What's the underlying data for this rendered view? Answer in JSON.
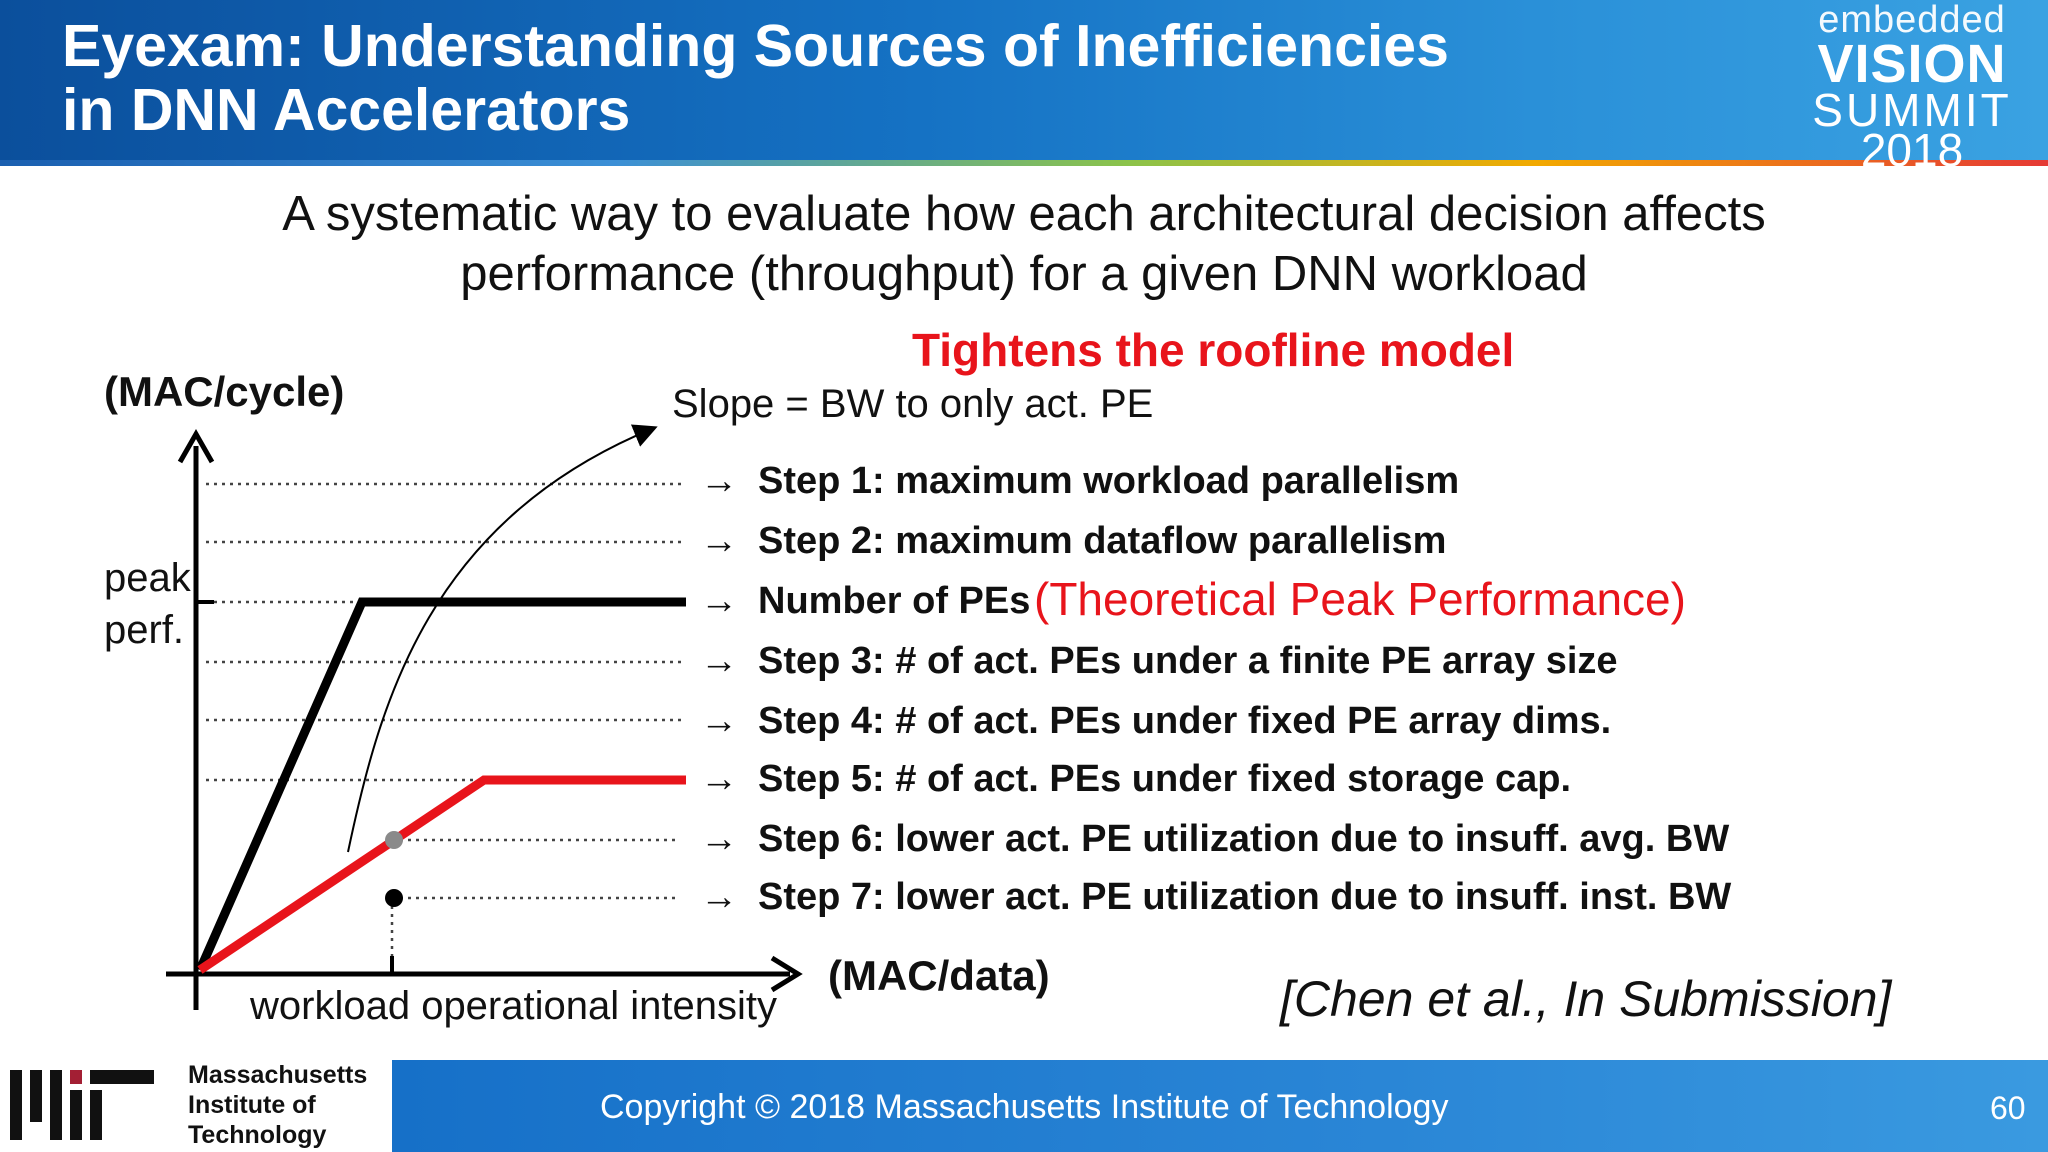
{
  "header": {
    "title_line1": "Eyexam: Understanding Sources of Inefficiencies",
    "title_line2": "in DNN Accelerators",
    "logo": {
      "line1": "embedded",
      "line2": "VISION",
      "line3": "SUMMIT",
      "line4": "2018"
    }
  },
  "subtitle": {
    "line1": "A systematic way to evaluate how each architectural decision affects",
    "line2": "performance (throughput) for a given DNN workload"
  },
  "diagram": {
    "roofline_label": "Tightens the roofline model",
    "y_axis_label": "(MAC/cycle)",
    "slope_label": "Slope = BW to only act. PE",
    "peak_line1": "peak",
    "peak_line2": "perf.",
    "x_axis_label": "(MAC/data)",
    "x_axis_sublabel": "workload operational intensity",
    "arrow_glyph": "→",
    "peak_note": "(Theoretical Peak Performance)",
    "steps": [
      "Step 1: maximum workload parallelism",
      "Step 2: maximum dataflow parallelism",
      "Number of PEs",
      "Step 3: # of act. PEs under a finite PE array size",
      "Step 4: # of act. PEs under fixed PE array dims.",
      "Step 5: # of act. PEs under fixed storage cap.",
      "Step 6: lower act. PE utilization due to insuff. avg. BW",
      "Step 7: lower act. PE utilization due to insuff. inst. BW"
    ],
    "colors": {
      "red": "#e8141b",
      "black": "#000000",
      "gray_point": "#8a8a8a"
    }
  },
  "citation": "[Chen et al., In Submission]",
  "footer": {
    "copyright": "Copyright © 2018 Massachusetts Institute of Technology",
    "page_number": "60",
    "mit_line1": "Massachusetts",
    "mit_line2": "Institute of",
    "mit_line3": "Technology"
  }
}
